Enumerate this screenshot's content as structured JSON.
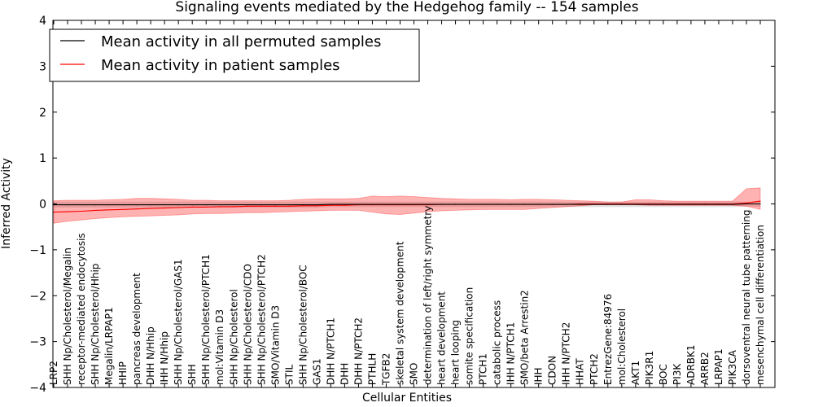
{
  "chart_data": {
    "type": "line",
    "title": "Signaling events mediated by the Hedgehog family -- 154 samples",
    "xlabel": "Cellular Entities",
    "ylabel": "Inferred Activity",
    "ylim": [
      -4,
      4
    ],
    "yticks": [
      "4",
      "3",
      "2",
      "1",
      "0",
      "−1",
      "−2",
      "−3",
      "−4"
    ],
    "ytick_values": [
      4,
      3,
      2,
      1,
      0,
      -1,
      -2,
      -3,
      -4
    ],
    "grid": false,
    "legend_position": "top-left",
    "categories": [
      "LRP2",
      "SHH Np/Cholesterol/Megalin",
      "receptor-mediated endocytosis",
      "SHH Np/Cholesterol/Hhip",
      "Megalin/LRPAP1",
      "HHIP",
      "pancreas development",
      "DHH N/Hhip",
      "IHH N/Hhip",
      "SHH Np/Cholesterol/GAS1",
      "SHH",
      "SHH Np/Cholesterol/PTCH1",
      "mol:Vitamin D3",
      "SHH Np/Cholesterol",
      "SHH Np/Cholesterol/CDO",
      "SHH Np/Cholesterol/PTCH2",
      "SMO/Vitamin D3",
      "STIL",
      "SHH Np/Cholesterol/BOC",
      "GAS1",
      "DHH N/PTCH1",
      "DHH",
      "DHH N/PTCH2",
      "PTHLH",
      "TGFB2",
      "skeletal system development",
      "SMO",
      "determination of left/right symmetry",
      "heart development",
      "heart looping",
      "somite specification",
      "PTCH1",
      "catabolic process",
      "IHH N/PTCH1",
      "SMO/beta Arrestin2",
      "IHH",
      "CDON",
      "IHH N/PTCH2",
      "HHAT",
      "PTCH2",
      "EntrezGene:84976",
      "mol:Cholesterol",
      "AKT1",
      "PIK3R1",
      "BOC",
      "PI3K",
      "ADRBK1",
      "ARRB2",
      "LRPAP1",
      "PIK3CA",
      "dorsoventral neural tube patterning",
      "mesenchymal cell differentiation"
    ],
    "series": [
      {
        "name": "Mean activity in all permuted samples",
        "color": "#000000",
        "values": [
          -0.02,
          -0.02,
          -0.02,
          -0.02,
          -0.02,
          -0.02,
          -0.02,
          -0.02,
          -0.02,
          -0.02,
          -0.02,
          -0.02,
          -0.02,
          -0.02,
          -0.02,
          -0.02,
          -0.02,
          -0.02,
          -0.02,
          -0.02,
          -0.01,
          -0.01,
          -0.01,
          -0.01,
          -0.01,
          -0.01,
          -0.01,
          -0.01,
          -0.01,
          -0.01,
          -0.01,
          -0.01,
          -0.01,
          -0.01,
          -0.01,
          -0.01,
          -0.01,
          -0.01,
          -0.01,
          -0.01,
          -0.01,
          -0.01,
          -0.01,
          -0.01,
          -0.01,
          -0.01,
          -0.01,
          -0.01,
          -0.01,
          -0.01,
          0.0,
          0.0
        ],
        "band_low": [
          -0.08,
          -0.08,
          -0.08,
          -0.08,
          -0.08,
          -0.08,
          -0.08,
          -0.08,
          -0.08,
          -0.08,
          -0.08,
          -0.08,
          -0.08,
          -0.08,
          -0.08,
          -0.08,
          -0.08,
          -0.08,
          -0.08,
          -0.08,
          -0.07,
          -0.07,
          -0.07,
          -0.07,
          -0.07,
          -0.07,
          -0.07,
          -0.07,
          -0.07,
          -0.07,
          -0.07,
          -0.07,
          -0.07,
          -0.07,
          -0.07,
          -0.07,
          -0.07,
          -0.07,
          -0.07,
          -0.07,
          -0.07,
          -0.07,
          -0.07,
          -0.07,
          -0.07,
          -0.07,
          -0.07,
          -0.07,
          -0.07,
          -0.07,
          -0.06,
          -0.06
        ],
        "band_high": [
          0.05,
          0.05,
          0.05,
          0.05,
          0.05,
          0.05,
          0.05,
          0.05,
          0.05,
          0.05,
          0.05,
          0.05,
          0.05,
          0.05,
          0.05,
          0.05,
          0.05,
          0.05,
          0.05,
          0.05,
          0.05,
          0.05,
          0.05,
          0.05,
          0.05,
          0.05,
          0.05,
          0.05,
          0.05,
          0.05,
          0.05,
          0.05,
          0.05,
          0.05,
          0.05,
          0.05,
          0.05,
          0.05,
          0.05,
          0.05,
          0.05,
          0.05,
          0.05,
          0.05,
          0.05,
          0.05,
          0.05,
          0.05,
          0.05,
          0.05,
          0.05,
          0.05
        ]
      },
      {
        "name": "Mean activity in patient samples",
        "color": "#ff0000",
        "values": [
          -0.18,
          -0.17,
          -0.16,
          -0.14,
          -0.13,
          -0.12,
          -0.11,
          -0.1,
          -0.09,
          -0.08,
          -0.07,
          -0.07,
          -0.06,
          -0.06,
          -0.05,
          -0.05,
          -0.05,
          -0.05,
          -0.04,
          -0.04,
          -0.03,
          -0.03,
          -0.02,
          -0.02,
          -0.02,
          -0.02,
          -0.02,
          -0.02,
          -0.01,
          -0.01,
          -0.01,
          -0.01,
          -0.01,
          -0.01,
          -0.01,
          -0.01,
          -0.01,
          -0.01,
          -0.0,
          0.0,
          0.0,
          0.0,
          0.0,
          0.0,
          0.0,
          0.0,
          0.0,
          0.0,
          0.0,
          0.0,
          0.02,
          0.06
        ],
        "band_low": [
          -0.42,
          -0.38,
          -0.35,
          -0.32,
          -0.3,
          -0.28,
          -0.27,
          -0.26,
          -0.25,
          -0.24,
          -0.22,
          -0.21,
          -0.21,
          -0.2,
          -0.19,
          -0.19,
          -0.18,
          -0.17,
          -0.16,
          -0.15,
          -0.14,
          -0.14,
          -0.14,
          -0.18,
          -0.22,
          -0.23,
          -0.2,
          -0.17,
          -0.15,
          -0.14,
          -0.13,
          -0.12,
          -0.12,
          -0.12,
          -0.12,
          -0.1,
          -0.08,
          -0.06,
          -0.04,
          -0.02,
          -0.02,
          -0.02,
          -0.02,
          -0.03,
          -0.03,
          -0.03,
          -0.03,
          -0.03,
          -0.03,
          -0.03,
          -0.05,
          -0.12
        ],
        "band_high": [
          0.07,
          0.08,
          0.08,
          0.08,
          0.09,
          0.1,
          0.12,
          0.12,
          0.11,
          0.1,
          0.08,
          0.08,
          0.07,
          0.07,
          0.07,
          0.07,
          0.07,
          0.08,
          0.1,
          0.11,
          0.11,
          0.11,
          0.12,
          0.17,
          0.16,
          0.17,
          0.16,
          0.14,
          0.12,
          0.11,
          0.1,
          0.1,
          0.1,
          0.09,
          0.1,
          0.1,
          0.09,
          0.08,
          0.07,
          0.06,
          0.04,
          0.04,
          0.09,
          0.09,
          0.07,
          0.06,
          0.06,
          0.06,
          0.06,
          0.06,
          0.33,
          0.35
        ]
      }
    ]
  }
}
